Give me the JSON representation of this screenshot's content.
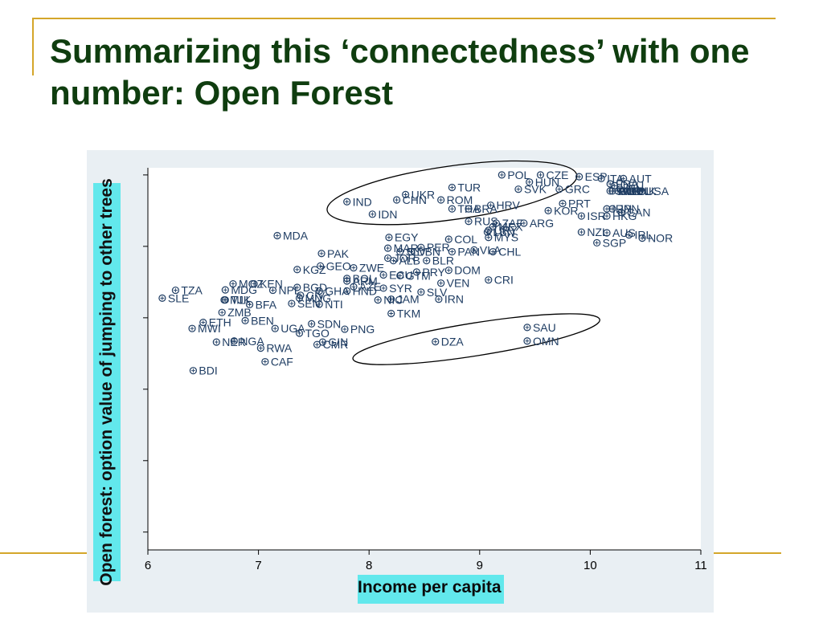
{
  "slide": {
    "title": "Summarizing this ‘connectedness’ with one number: Open Forest"
  },
  "colors": {
    "accent_line": "#d4a62a",
    "title": "#0f3d0f",
    "chart_background": "#e9eff3",
    "plot_background": "#ffffff",
    "label_highlight": "#62e8ec",
    "markers": "#1f3d63"
  },
  "chart_data": {
    "type": "scatter",
    "xlabel": "Income per capita",
    "ylabel": "Open forest: option value of jumping to other trees",
    "xlim": [
      6,
      11
    ],
    "xticks": [
      6,
      7,
      8,
      9,
      10,
      11
    ],
    "ylim": [
      -0.05,
      1.02
    ],
    "y_tick_values": [
      0,
      0.2,
      0.4,
      0.6,
      0.8,
      1.0
    ],
    "y_tick_labels_visible": false,
    "grid": false,
    "points": [
      {
        "label": "POL",
        "x": 9.2,
        "y": 1.0
      },
      {
        "label": "CZE",
        "x": 9.55,
        "y": 1.0
      },
      {
        "label": "ESP",
        "x": 9.9,
        "y": 0.995
      },
      {
        "label": "ITA",
        "x": 10.1,
        "y": 0.99
      },
      {
        "label": "AUT",
        "x": 10.3,
        "y": 0.99
      },
      {
        "label": "HUN",
        "x": 9.45,
        "y": 0.98
      },
      {
        "label": "FRA",
        "x": 10.18,
        "y": 0.975
      },
      {
        "label": "DEU",
        "x": 10.22,
        "y": 0.97
      },
      {
        "label": "SVK",
        "x": 9.35,
        "y": 0.96
      },
      {
        "label": "GRC",
        "x": 9.72,
        "y": 0.96
      },
      {
        "label": "SWE",
        "x": 10.18,
        "y": 0.955
      },
      {
        "label": "GBR",
        "x": 10.2,
        "y": 0.955
      },
      {
        "label": "NLD",
        "x": 10.25,
        "y": 0.955
      },
      {
        "label": "BEL",
        "x": 10.3,
        "y": 0.955
      },
      {
        "label": "DNK",
        "x": 10.33,
        "y": 0.955
      },
      {
        "label": "FIN",
        "x": 10.27,
        "y": 0.96
      },
      {
        "label": "USA",
        "x": 10.45,
        "y": 0.955
      },
      {
        "label": "TUR",
        "x": 8.75,
        "y": 0.965
      },
      {
        "label": "UKR",
        "x": 8.33,
        "y": 0.945
      },
      {
        "label": "CHN",
        "x": 8.25,
        "y": 0.93
      },
      {
        "label": "ROM",
        "x": 8.65,
        "y": 0.93
      },
      {
        "label": "IND",
        "x": 7.8,
        "y": 0.925
      },
      {
        "label": "HRV",
        "x": 9.1,
        "y": 0.915
      },
      {
        "label": "PRT",
        "x": 9.75,
        "y": 0.92
      },
      {
        "label": "THA",
        "x": 8.75,
        "y": 0.905
      },
      {
        "label": "BRA",
        "x": 8.9,
        "y": 0.905
      },
      {
        "label": "IRN",
        "x": 10.15,
        "y": 0.905
      },
      {
        "label": "KOR",
        "x": 9.62,
        "y": 0.9
      },
      {
        "label": "JPN",
        "x": 10.2,
        "y": 0.905
      },
      {
        "label": "CAN",
        "x": 10.28,
        "y": 0.895
      },
      {
        "label": "IDN",
        "x": 8.03,
        "y": 0.89
      },
      {
        "label": "ISR",
        "x": 9.92,
        "y": 0.885
      },
      {
        "label": "HKG",
        "x": 10.15,
        "y": 0.885
      },
      {
        "label": "RUS",
        "x": 8.9,
        "y": 0.87
      },
      {
        "label": "ZAF",
        "x": 9.15,
        "y": 0.865
      },
      {
        "label": "ARG",
        "x": 9.4,
        "y": 0.865
      },
      {
        "label": "MEX",
        "x": 9.12,
        "y": 0.855
      },
      {
        "label": "URY",
        "x": 9.08,
        "y": 0.845
      },
      {
        "label": "LBN",
        "x": 9.07,
        "y": 0.84
      },
      {
        "label": "MYS",
        "x": 9.08,
        "y": 0.825
      },
      {
        "label": "NZL",
        "x": 9.92,
        "y": 0.84
      },
      {
        "label": "AUS",
        "x": 10.15,
        "y": 0.838
      },
      {
        "label": "IRL",
        "x": 10.35,
        "y": 0.832
      },
      {
        "label": "NOR",
        "x": 10.47,
        "y": 0.823
      },
      {
        "label": "MDA",
        "x": 7.17,
        "y": 0.83
      },
      {
        "label": "EGY",
        "x": 8.18,
        "y": 0.825
      },
      {
        "label": "COL",
        "x": 8.72,
        "y": 0.82
      },
      {
        "label": "SGP",
        "x": 10.06,
        "y": 0.81
      },
      {
        "label": "MAR",
        "x": 8.17,
        "y": 0.795
      },
      {
        "label": "PER",
        "x": 8.47,
        "y": 0.797
      },
      {
        "label": "SLV",
        "x": 8.28,
        "y": 0.785
      },
      {
        "label": "DBN",
        "x": 8.38,
        "y": 0.785
      },
      {
        "label": "PAN",
        "x": 8.75,
        "y": 0.785
      },
      {
        "label": "VLA",
        "x": 8.95,
        "y": 0.79
      },
      {
        "label": "CHL",
        "x": 9.12,
        "y": 0.785
      },
      {
        "label": "PAK",
        "x": 7.57,
        "y": 0.78
      },
      {
        "label": "JOR",
        "x": 8.17,
        "y": 0.767
      },
      {
        "label": "ALB",
        "x": 8.22,
        "y": 0.76
      },
      {
        "label": "BLR",
        "x": 8.52,
        "y": 0.76
      },
      {
        "label": "GEO",
        "x": 7.56,
        "y": 0.745
      },
      {
        "label": "ZWE",
        "x": 7.86,
        "y": 0.74
      },
      {
        "label": "KGZ",
        "x": 7.35,
        "y": 0.735
      },
      {
        "label": "DOM",
        "x": 8.72,
        "y": 0.733
      },
      {
        "label": "PRY",
        "x": 8.43,
        "y": 0.728
      },
      {
        "label": "ECU",
        "x": 8.13,
        "y": 0.72
      },
      {
        "label": "GTM",
        "x": 8.28,
        "y": 0.718
      },
      {
        "label": "BOL",
        "x": 7.8,
        "y": 0.71
      },
      {
        "label": "ARM",
        "x": 7.8,
        "y": 0.703
      },
      {
        "label": "CRI",
        "x": 9.08,
        "y": 0.706
      },
      {
        "label": "VEN",
        "x": 8.65,
        "y": 0.697
      },
      {
        "label": "MOZ",
        "x": 6.77,
        "y": 0.695
      },
      {
        "label": "KEN",
        "x": 6.96,
        "y": 0.695
      },
      {
        "label": "BGD",
        "x": 7.35,
        "y": 0.685
      },
      {
        "label": "AZE",
        "x": 7.86,
        "y": 0.687
      },
      {
        "label": "SYR",
        "x": 8.13,
        "y": 0.683
      },
      {
        "label": "NPL",
        "x": 7.13,
        "y": 0.677
      },
      {
        "label": "TZA",
        "x": 6.25,
        "y": 0.677
      },
      {
        "label": "MDG",
        "x": 6.7,
        "y": 0.678
      },
      {
        "label": "GHA",
        "x": 7.55,
        "y": 0.675
      },
      {
        "label": "HND",
        "x": 7.8,
        "y": 0.675
      },
      {
        "label": "SLV",
        "x": 8.47,
        "y": 0.672
      },
      {
        "label": "CIV",
        "x": 7.38,
        "y": 0.663
      },
      {
        "label": "MNG",
        "x": 7.37,
        "y": 0.655
      },
      {
        "label": "SLE",
        "x": 6.13,
        "y": 0.655
      },
      {
        "label": "MLI",
        "x": 6.69,
        "y": 0.65
      },
      {
        "label": "TJK",
        "x": 6.7,
        "y": 0.65
      },
      {
        "label": "NIC",
        "x": 8.08,
        "y": 0.65
      },
      {
        "label": "JAM",
        "x": 8.2,
        "y": 0.652
      },
      {
        "label": "IRN",
        "x": 8.63,
        "y": 0.652
      },
      {
        "label": "SEN",
        "x": 7.3,
        "y": 0.64
      },
      {
        "label": "NTI",
        "x": 7.55,
        "y": 0.638
      },
      {
        "label": "BFA",
        "x": 6.92,
        "y": 0.637
      },
      {
        "label": "ZMB",
        "x": 6.67,
        "y": 0.615
      },
      {
        "label": "TKM",
        "x": 8.2,
        "y": 0.612
      },
      {
        "label": "BEN",
        "x": 6.88,
        "y": 0.592
      },
      {
        "label": "ETH",
        "x": 6.5,
        "y": 0.587
      },
      {
        "label": "SDN",
        "x": 7.48,
        "y": 0.583
      },
      {
        "label": "MWI",
        "x": 6.4,
        "y": 0.57
      },
      {
        "label": "UGA",
        "x": 7.15,
        "y": 0.57
      },
      {
        "label": "PNG",
        "x": 7.78,
        "y": 0.568
      },
      {
        "label": "SAU",
        "x": 9.43,
        "y": 0.573
      },
      {
        "label": "TGO",
        "x": 7.37,
        "y": 0.557
      },
      {
        "label": "NGA",
        "x": 6.78,
        "y": 0.535
      },
      {
        "label": "NER",
        "x": 6.62,
        "y": 0.532
      },
      {
        "label": "GIN",
        "x": 7.58,
        "y": 0.532
      },
      {
        "label": "DZA",
        "x": 8.6,
        "y": 0.533
      },
      {
        "label": "OMN",
        "x": 9.43,
        "y": 0.535
      },
      {
        "label": "CMR",
        "x": 7.53,
        "y": 0.525
      },
      {
        "label": "RWA",
        "x": 7.02,
        "y": 0.515
      },
      {
        "label": "CAF",
        "x": 7.06,
        "y": 0.477
      },
      {
        "label": "BDI",
        "x": 6.41,
        "y": 0.452
      }
    ],
    "annotations": [
      {
        "shape": "ellipse",
        "note": "circled group",
        "center": [
          8.75,
          0.95
        ],
        "radii": [
          1.14,
          0.075
        ],
        "rotate": -8
      },
      {
        "shape": "ellipse",
        "note": "circled group",
        "center": [
          8.97,
          0.54
        ],
        "radii": [
          1.13,
          0.046
        ],
        "rotate": -9
      }
    ]
  }
}
